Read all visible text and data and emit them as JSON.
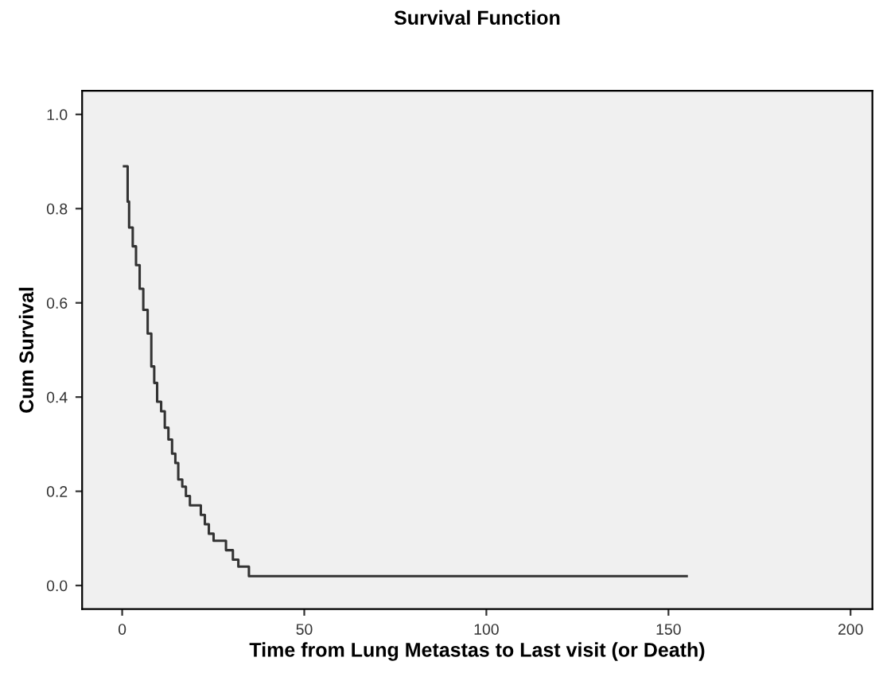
{
  "chart_data": {
    "type": "step",
    "title": "Survival Function",
    "xlabel": "Time from Lung Metastas to Last visit (or Death)",
    "ylabel": "Cum Survival",
    "x": [
      0.5,
      1.5,
      1.9,
      2.9,
      3.8,
      4.8,
      5.8,
      7,
      8,
      8.8,
      9.6,
      10.7,
      11.7,
      12.7,
      13.7,
      14.6,
      15.4,
      16.5,
      17.5,
      18.6,
      21.6,
      22.7,
      23.8,
      25.1,
      28.5,
      30.4,
      31.9,
      34.8,
      155
    ],
    "series": [
      {
        "color": "#333333",
        "values": [
          0.89,
          0.815,
          0.76,
          0.72,
          0.68,
          0.63,
          0.585,
          0.535,
          0.465,
          0.43,
          0.39,
          0.37,
          0.335,
          0.31,
          0.28,
          0.26,
          0.225,
          0.21,
          0.19,
          0.17,
          0.15,
          0.13,
          0.11,
          0.095,
          0.075,
          0.055,
          0.04,
          0.02,
          0.02
        ]
      }
    ],
    "xlim": [
      -11,
      206
    ],
    "ylim": [
      -0.05,
      1.05
    ],
    "xticks": [
      0,
      50,
      100,
      150,
      200
    ],
    "yticks": [
      {
        "value": 0,
        "label": "0.0"
      },
      {
        "value": 0.2,
        "label": "0.2"
      },
      {
        "value": 0.4,
        "label": "0.4"
      },
      {
        "value": 0.6,
        "label": "0.6"
      },
      {
        "value": 0.8,
        "label": "0.8"
      },
      {
        "value": 1,
        "label": "1.0"
      }
    ],
    "grid": false,
    "legend": false
  }
}
